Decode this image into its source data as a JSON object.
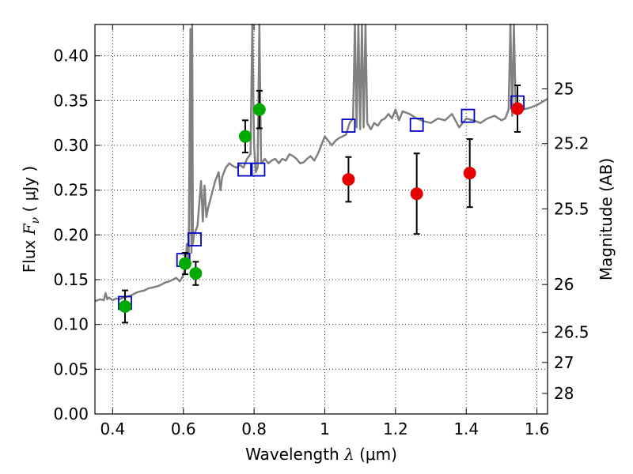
{
  "chart_data": {
    "type": "scatter",
    "title": "",
    "xlabel": {
      "prefix": "Wavelength  ",
      "symbol": "λ",
      "unit": " (μm)"
    },
    "ylabel": {
      "prefix": "Flux  ",
      "symbol": "F",
      "subscript": "ν",
      "unit": "  ( μJy )"
    },
    "y2label": "Magnitude (AB)",
    "xlim": [
      0.35,
      1.63
    ],
    "ylim": [
      0.0,
      0.435
    ],
    "xticks": [
      0.4,
      0.6,
      0.8,
      1.0,
      1.2,
      1.4,
      1.6
    ],
    "xtick_labels": [
      "0.4",
      "0.6",
      "0.8",
      "1",
      "1.2",
      "1.4",
      "1.6"
    ],
    "yticks": [
      0.0,
      0.05,
      0.1,
      0.15,
      0.2,
      0.25,
      0.3,
      0.35,
      0.4
    ],
    "ytick_labels": [
      "0.00",
      "0.05",
      "0.10",
      "0.15",
      "0.20",
      "0.25",
      "0.30",
      "0.35",
      "0.40"
    ],
    "y2ticks": [
      {
        "mag": 25.0,
        "label": "25"
      },
      {
        "mag": 25.2,
        "label": "25.2"
      },
      {
        "mag": 25.5,
        "label": "25.5"
      },
      {
        "mag": 26.0,
        "label": "26"
      },
      {
        "mag": 26.5,
        "label": "26.5"
      },
      {
        "mag": 27.0,
        "label": "27"
      },
      {
        "mag": 28.0,
        "label": "28"
      }
    ],
    "grid": true,
    "colors": {
      "spectrum": "#808080",
      "green": "#00aa00",
      "red": "#e50000",
      "model": "#0000cc",
      "errorbar": "#000000"
    },
    "spectrum": {
      "x": [
        0.35,
        0.365,
        0.375,
        0.38,
        0.385,
        0.39,
        0.4,
        0.41,
        0.42,
        0.43,
        0.44,
        0.45,
        0.46,
        0.47,
        0.48,
        0.49,
        0.5,
        0.51,
        0.52,
        0.53,
        0.54,
        0.55,
        0.56,
        0.57,
        0.58,
        0.59,
        0.6,
        0.605,
        0.61,
        0.615,
        0.62,
        0.623,
        0.625,
        0.627,
        0.63,
        0.64,
        0.65,
        0.655,
        0.66,
        0.665,
        0.67,
        0.68,
        0.69,
        0.7,
        0.705,
        0.71,
        0.72,
        0.73,
        0.74,
        0.75,
        0.76,
        0.77,
        0.78,
        0.79,
        0.795,
        0.8,
        0.805,
        0.81,
        0.815,
        0.82,
        0.825,
        0.83,
        0.84,
        0.85,
        0.86,
        0.87,
        0.88,
        0.89,
        0.9,
        0.91,
        0.92,
        0.93,
        0.94,
        0.95,
        0.96,
        0.97,
        0.98,
        0.99,
        1.0,
        1.01,
        1.02,
        1.03,
        1.04,
        1.05,
        1.06,
        1.07,
        1.08,
        1.085,
        1.09,
        1.095,
        1.1,
        1.105,
        1.11,
        1.115,
        1.12,
        1.13,
        1.14,
        1.15,
        1.16,
        1.17,
        1.18,
        1.19,
        1.2,
        1.21,
        1.22,
        1.24,
        1.26,
        1.28,
        1.3,
        1.32,
        1.34,
        1.36,
        1.38,
        1.4,
        1.42,
        1.44,
        1.46,
        1.48,
        1.5,
        1.51,
        1.52,
        1.525,
        1.53,
        1.535,
        1.54,
        1.55,
        1.56,
        1.58,
        1.6,
        1.63
      ],
      "y": [
        0.126,
        0.128,
        0.127,
        0.135,
        0.128,
        0.13,
        0.127,
        0.129,
        0.128,
        0.13,
        0.131,
        0.132,
        0.134,
        0.136,
        0.137,
        0.138,
        0.14,
        0.141,
        0.142,
        0.143,
        0.145,
        0.147,
        0.148,
        0.15,
        0.152,
        0.148,
        0.155,
        0.165,
        0.19,
        0.17,
        0.43,
        0.18,
        0.435,
        0.19,
        0.2,
        0.21,
        0.26,
        0.215,
        0.255,
        0.22,
        0.23,
        0.245,
        0.26,
        0.27,
        0.25,
        0.265,
        0.275,
        0.28,
        0.277,
        0.275,
        0.278,
        0.275,
        0.285,
        0.29,
        0.435,
        0.3,
        0.27,
        0.275,
        0.435,
        0.28,
        0.282,
        0.285,
        0.28,
        0.283,
        0.285,
        0.28,
        0.285,
        0.283,
        0.29,
        0.288,
        0.285,
        0.28,
        0.281,
        0.285,
        0.288,
        0.283,
        0.29,
        0.3,
        0.31,
        0.305,
        0.3,
        0.305,
        0.308,
        0.31,
        0.312,
        0.325,
        0.33,
        0.435,
        0.32,
        0.435,
        0.318,
        0.435,
        0.32,
        0.435,
        0.325,
        0.318,
        0.325,
        0.322,
        0.328,
        0.33,
        0.335,
        0.33,
        0.34,
        0.328,
        0.338,
        0.335,
        0.33,
        0.327,
        0.325,
        0.33,
        0.328,
        0.335,
        0.32,
        0.33,
        0.328,
        0.325,
        0.33,
        0.333,
        0.328,
        0.33,
        0.34,
        0.435,
        0.333,
        0.435,
        0.338,
        0.337,
        0.34,
        0.342,
        0.345,
        0.352
      ],
      "caption": ""
    },
    "green_points": [
      {
        "x": 0.435,
        "y": 0.12,
        "err": 0.018
      },
      {
        "x": 0.605,
        "y": 0.168,
        "err": 0.012
      },
      {
        "x": 0.635,
        "y": 0.157,
        "err": 0.013
      },
      {
        "x": 0.775,
        "y": 0.31,
        "err": 0.018
      },
      {
        "x": 0.815,
        "y": 0.34,
        "err": 0.021
      }
    ],
    "red_points": [
      {
        "x": 1.067,
        "y": 0.262,
        "err": 0.025
      },
      {
        "x": 1.26,
        "y": 0.246,
        "err": 0.045
      },
      {
        "x": 1.41,
        "y": 0.269,
        "err": 0.038
      },
      {
        "x": 1.545,
        "y": 0.341,
        "err": 0.026
      }
    ],
    "model_points": [
      {
        "x": 0.435,
        "y": 0.124
      },
      {
        "x": 0.6,
        "y": 0.172
      },
      {
        "x": 0.632,
        "y": 0.195
      },
      {
        "x": 0.773,
        "y": 0.273
      },
      {
        "x": 0.812,
        "y": 0.273
      },
      {
        "x": 1.067,
        "y": 0.322
      },
      {
        "x": 1.26,
        "y": 0.323
      },
      {
        "x": 1.405,
        "y": 0.333
      },
      {
        "x": 1.545,
        "y": 0.348
      }
    ]
  }
}
